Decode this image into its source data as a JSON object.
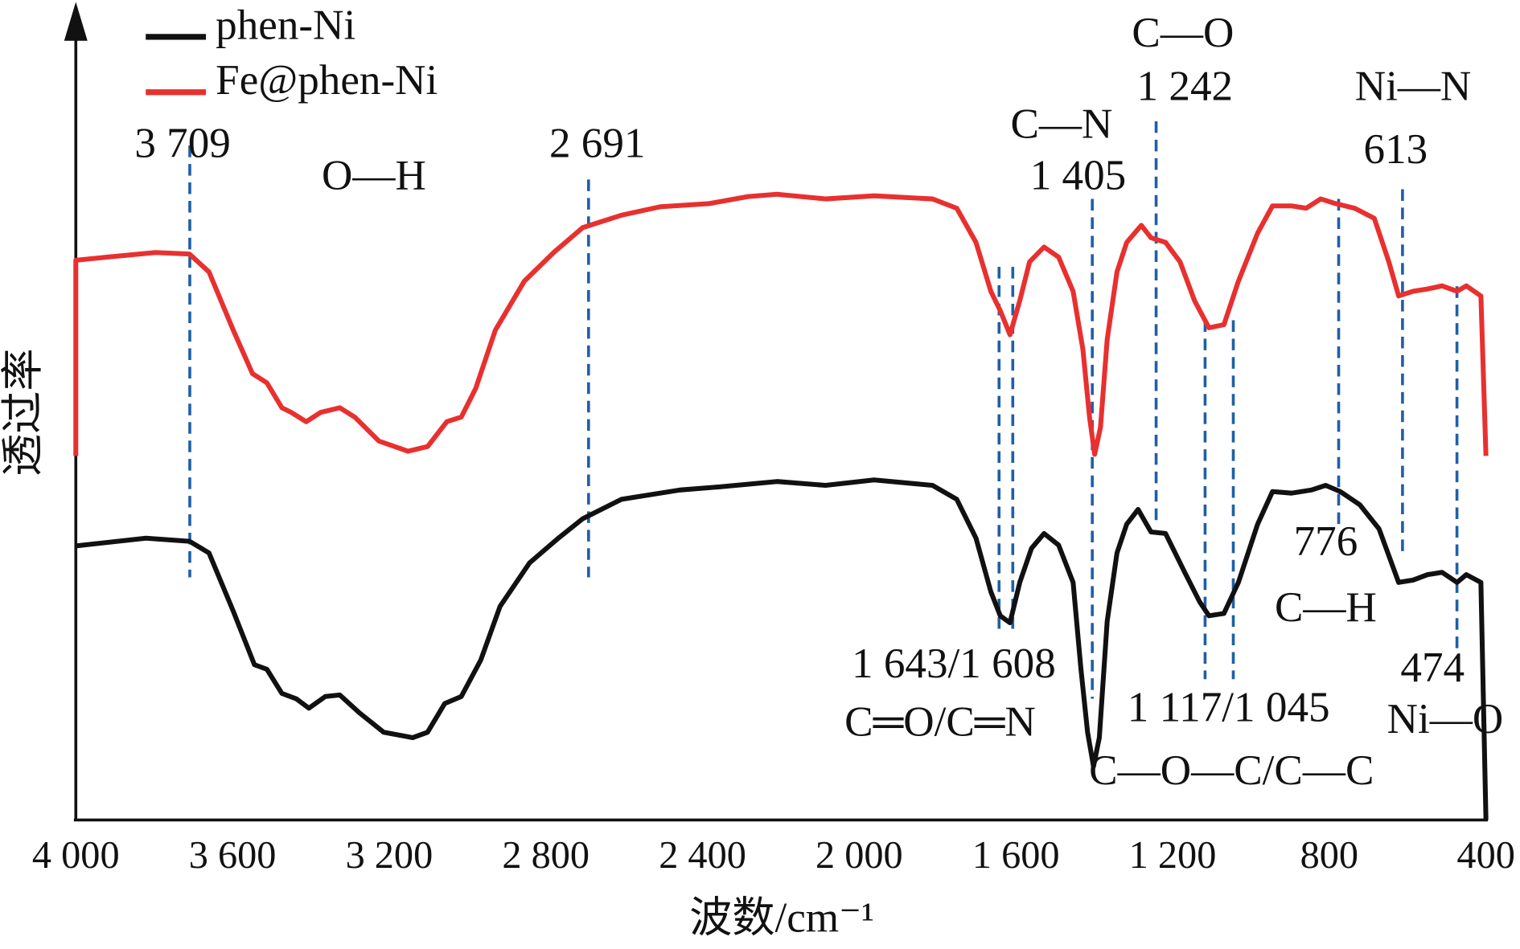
{
  "chart_data": {
    "type": "line",
    "x_label": "波数/cm⁻¹",
    "y_label": "透过率",
    "xlim": [
      4000,
      400
    ],
    "ylim": [
      0,
      100
    ],
    "xticks": [
      {
        "value": 4000,
        "label": "4 000"
      },
      {
        "value": 3600,
        "label": "3 600"
      },
      {
        "value": 3200,
        "label": "3 200"
      },
      {
        "value": 2800,
        "label": "2 800"
      },
      {
        "value": 2400,
        "label": "2 400"
      },
      {
        "value": 2000,
        "label": "2 000"
      },
      {
        "value": 1600,
        "label": "1 600"
      },
      {
        "value": 1200,
        "label": "1 200"
      },
      {
        "value": 800,
        "label": "800"
      },
      400
    ],
    "series": [
      {
        "name": "phen-Ni",
        "color": "#111111",
        "x": [
          4000,
          3821,
          3710,
          3660,
          3598,
          3544,
          3512,
          3474,
          3437,
          3405,
          3363,
          3326,
          3276,
          3214,
          3140,
          3102,
          3058,
          3016,
          2966,
          2917,
          2842,
          2768,
          2706,
          2607,
          2458,
          2359,
          2210,
          2086,
          1962,
          1813,
          1751,
          1702,
          1664,
          1640,
          1615,
          1590,
          1560,
          1528,
          1491,
          1454,
          1434,
          1417,
          1402,
          1387,
          1367,
          1342,
          1317,
          1288,
          1255,
          1218,
          1169,
          1131,
          1107,
          1069,
          1032,
          983,
          945,
          896,
          846,
          809,
          772,
          722,
          673,
          623,
          586,
          549,
          512,
          474,
          450,
          413,
          400
        ],
        "values": [
          35.3,
          36.3,
          35.9,
          34.4,
          26.9,
          20,
          19.4,
          16.3,
          15.6,
          14.4,
          15.9,
          16.1,
          13.8,
          11.3,
          10.6,
          11.3,
          15,
          15.9,
          20.6,
          27.5,
          33.1,
          36.3,
          38.8,
          41.3,
          42.5,
          42.9,
          43.6,
          43.1,
          43.8,
          43.1,
          41.3,
          36.3,
          29.4,
          26.3,
          25.4,
          30.6,
          35,
          36.9,
          35.4,
          30.6,
          19.4,
          11.3,
          6.9,
          10.6,
          25.6,
          34.4,
          38.1,
          40,
          37.1,
          36.9,
          31.9,
          28.1,
          26.3,
          26.6,
          30.6,
          38.1,
          42.3,
          42.1,
          42.5,
          43.1,
          42.3,
          40.6,
          37.5,
          30.6,
          30.9,
          31.6,
          31.9,
          30.6,
          31.6,
          30.6,
          0
        ]
      },
      {
        "name": "Fe@phen-Ni",
        "color": "#e8302f",
        "x": [
          4000,
          4000,
          3921,
          3797,
          3710,
          3660,
          3598,
          3549,
          3512,
          3474,
          3450,
          3412,
          3375,
          3326,
          3288,
          3226,
          3152,
          3102,
          3053,
          3016,
          2979,
          2929,
          2855,
          2780,
          2706,
          2607,
          2507,
          2383,
          2284,
          2210,
          2086,
          1962,
          1813,
          1751,
          1702,
          1664,
          1640,
          1615,
          1590,
          1565,
          1528,
          1491,
          1454,
          1429,
          1412,
          1399,
          1384,
          1367,
          1342,
          1317,
          1280,
          1255,
          1218,
          1181,
          1144,
          1107,
          1069,
          1032,
          983,
          945,
          896,
          859,
          822,
          784,
          735,
          685,
          648,
          623,
          586,
          549,
          512,
          474,
          450,
          413,
          400
        ],
        "values": [
          46.9,
          72.1,
          72.5,
          73.1,
          72.9,
          70.6,
          63.1,
          57.5,
          56.3,
          53.1,
          52.5,
          51.3,
          52.5,
          53.1,
          51.9,
          48.8,
          47.5,
          48.1,
          51.3,
          51.9,
          55.6,
          63.1,
          69.4,
          73.1,
          76.3,
          77.9,
          79,
          79.4,
          80.3,
          80.6,
          80,
          80.4,
          80,
          78.8,
          74.4,
          68.1,
          65.6,
          62.5,
          66.9,
          71.9,
          73.8,
          72.5,
          68.1,
          60.6,
          51.9,
          47.1,
          50.6,
          61.9,
          70.6,
          74.4,
          76.6,
          75,
          74.4,
          71.9,
          66.9,
          63.4,
          63.8,
          69.4,
          75.6,
          79.1,
          79.1,
          78.8,
          80,
          79.4,
          78.8,
          77.5,
          71.9,
          67.5,
          68.1,
          68.4,
          68.8,
          68.1,
          68.8,
          67.5,
          46.9
        ]
      }
    ],
    "peaks": [
      {
        "label": "3 709",
        "x": [
          3709
        ]
      },
      {
        "label": "2 691",
        "x": [
          2691
        ]
      },
      {
        "label": "1 643/1 608",
        "x": [
          1643,
          1608
        ]
      },
      {
        "label": "1 405",
        "x": [
          1405
        ]
      },
      {
        "label": "1 242",
        "x": [
          1242
        ]
      },
      {
        "label": "1 117/1 045",
        "x": [
          1117,
          1045
        ]
      },
      {
        "label": "776",
        "x": [
          776
        ]
      },
      {
        "label": "613",
        "x": [
          613
        ]
      },
      {
        "label": "474",
        "x": [
          474
        ]
      }
    ],
    "assignments": [
      "O—H",
      "C═O/C═N",
      "C—N",
      "C—O",
      "C—O—C/C—C",
      "C—H",
      "Ni—N",
      "Ni—O"
    ]
  }
}
